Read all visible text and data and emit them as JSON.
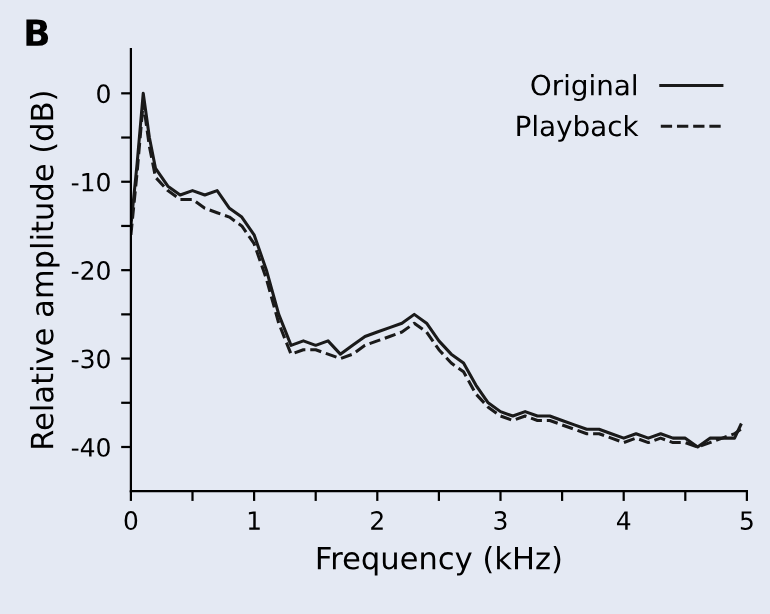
{
  "chart_data": {
    "type": "line",
    "title": "B",
    "xlabel": "Frequency (kHz)",
    "ylabel": "Relative amplitude (dB)",
    "x": [
      0,
      0.05,
      0.1,
      0.15,
      0.2,
      0.3,
      0.4,
      0.5,
      0.6,
      0.7,
      0.8,
      0.9,
      1.0,
      1.1,
      1.2,
      1.3,
      1.4,
      1.5,
      1.6,
      1.7,
      1.8,
      1.9,
      2.0,
      2.1,
      2.2,
      2.3,
      2.4,
      2.5,
      2.6,
      2.7,
      2.8,
      2.9,
      3.0,
      3.1,
      3.2,
      3.3,
      3.4,
      3.5,
      3.6,
      3.7,
      3.8,
      3.9,
      4.0,
      4.1,
      4.2,
      4.3,
      4.4,
      4.5,
      4.6,
      4.7,
      4.8,
      4.9,
      4.95
    ],
    "series": [
      {
        "name": "Original",
        "color": "#1a1a1a",
        "line_style": "solid",
        "values": [
          -15,
          -8,
          0,
          -5,
          -8.5,
          -10.5,
          -11.5,
          -11,
          -11.5,
          -11,
          -13,
          -14,
          -16,
          -20,
          -25,
          -28.5,
          -28,
          -28.5,
          -28,
          -29.5,
          -28.5,
          -27.5,
          -27,
          -26.5,
          -26,
          -25,
          -26,
          -28,
          -29.5,
          -30.5,
          -33,
          -35,
          -36,
          -36.5,
          -36,
          -36.5,
          -36.5,
          -37,
          -37.5,
          -38,
          -38,
          -38.5,
          -39,
          -38.5,
          -39,
          -38.5,
          -39,
          -39,
          -40,
          -39,
          -39,
          -39,
          -37.5
        ]
      },
      {
        "name": "Playback",
        "color": "#1a1a1a",
        "line_style": "dashed",
        "values": [
          -16,
          -9,
          -1,
          -6,
          -9.5,
          -11,
          -12,
          -12,
          -13,
          -13.5,
          -14,
          -15,
          -17,
          -21,
          -26,
          -29.5,
          -29,
          -29,
          -29.5,
          -30,
          -29.5,
          -28.5,
          -28,
          -27.5,
          -27,
          -26,
          -27,
          -29,
          -30.5,
          -31.5,
          -34,
          -35.5,
          -36.5,
          -37,
          -36.5,
          -37,
          -37,
          -37.5,
          -38,
          -38.5,
          -38.5,
          -39,
          -39.5,
          -39,
          -39.5,
          -39,
          -39.5,
          -39.5,
          -40,
          -39.5,
          -39,
          -38.5,
          -38
        ]
      }
    ],
    "xlim": [
      0,
      5
    ],
    "ylim": [
      -45,
      5
    ],
    "xticks": [
      0,
      {
        "value": 0.5,
        "label": null
      },
      1,
      {
        "value": 1.5,
        "label": null
      },
      2,
      {
        "value": 2.5,
        "label": null
      },
      3,
      {
        "value": 3.5,
        "label": null
      },
      4,
      {
        "value": 4.5,
        "label": null
      },
      5
    ],
    "yticks": [
      -40,
      {
        "value": -35,
        "label": null
      },
      -30,
      {
        "value": -25,
        "label": null
      },
      -20,
      {
        "value": -15,
        "label": null
      },
      -10,
      {
        "value": -5,
        "label": null
      },
      0
    ],
    "legend": "top right",
    "grid": false
  }
}
